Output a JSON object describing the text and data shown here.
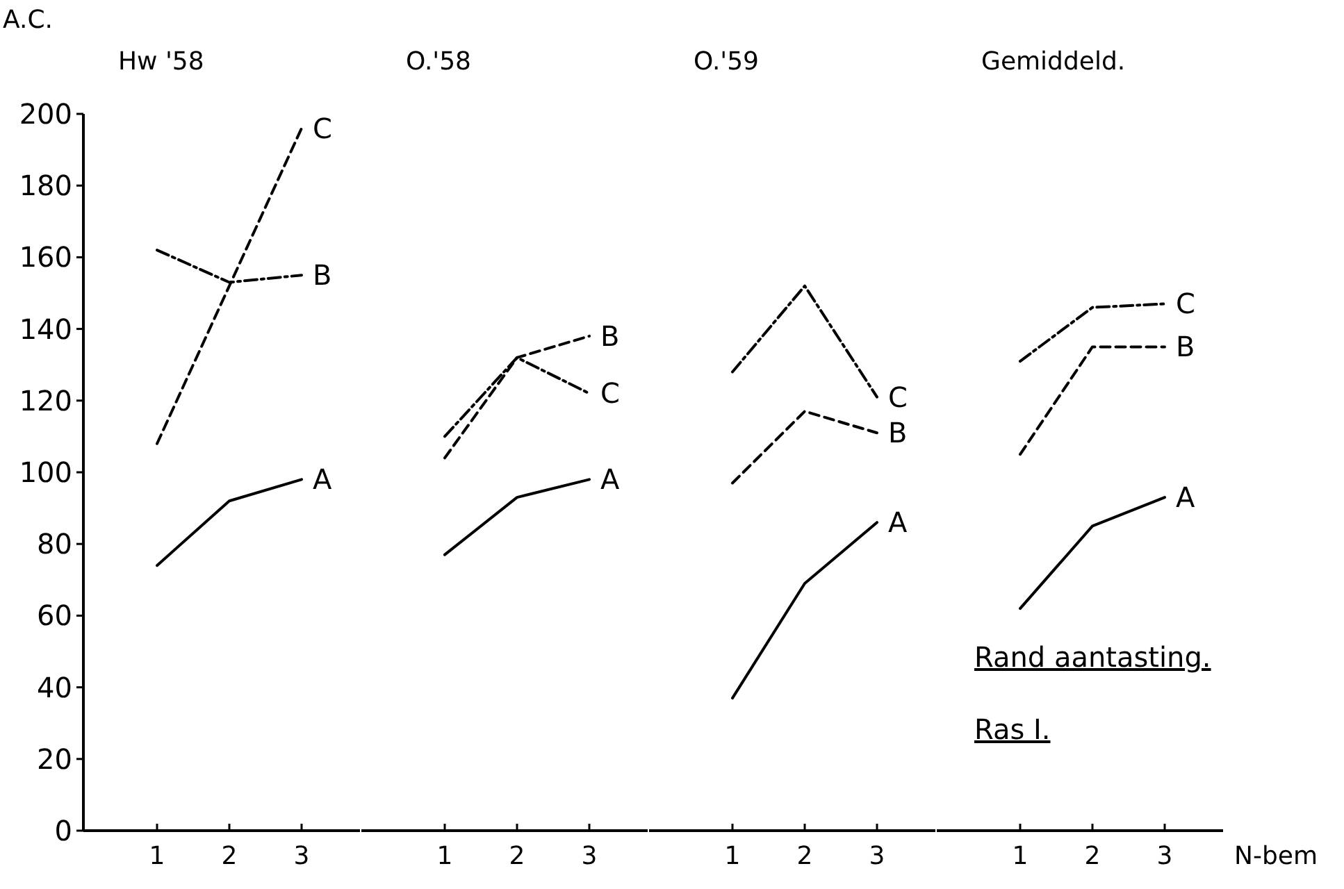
{
  "chart_data": [
    {
      "type": "line",
      "title": "Hw '58",
      "ylabel": "A.C.",
      "categories": [
        "1",
        "2",
        "3"
      ],
      "ylim": [
        0,
        200
      ],
      "yticks": [
        0,
        20,
        40,
        60,
        80,
        100,
        120,
        140,
        160,
        180,
        200
      ],
      "legend": false,
      "series": [
        {
          "name": "A",
          "color": "#000000",
          "line_style": "solid",
          "values": [
            74,
            92,
            98
          ]
        },
        {
          "name": "B",
          "color": "#000000",
          "line_style": "dashdot",
          "values": [
            162,
            153,
            155
          ]
        },
        {
          "name": "C",
          "color": "#000000",
          "line_style": "dashed",
          "values": [
            108,
            152,
            196
          ]
        }
      ]
    },
    {
      "type": "line",
      "title": "O.'58",
      "categories": [
        "1",
        "2",
        "3"
      ],
      "ylim": [
        0,
        200
      ],
      "yticks": [
        0,
        20,
        40,
        60,
        80,
        100,
        120,
        140,
        160,
        180,
        200
      ],
      "tick_labels": "x",
      "legend": false,
      "series": [
        {
          "name": "A",
          "color": "#000000",
          "line_style": "solid",
          "values": [
            77,
            93,
            98
          ]
        },
        {
          "name": "B",
          "color": "#000000",
          "line_style": "dashed",
          "values": [
            104,
            132,
            138
          ]
        },
        {
          "name": "C",
          "color": "#000000",
          "line_style": "dashdot",
          "values": [
            110,
            132,
            122
          ]
        }
      ]
    },
    {
      "type": "line",
      "title": "O.'59",
      "categories": [
        "1",
        "2",
        "3"
      ],
      "ylim": [
        0,
        200
      ],
      "yticks": [
        0,
        20,
        40,
        60,
        80,
        100,
        120,
        140,
        160,
        180,
        200
      ],
      "tick_labels": "x",
      "legend": false,
      "series": [
        {
          "name": "A",
          "color": "#000000",
          "line_style": "solid",
          "values": [
            37,
            69,
            86
          ]
        },
        {
          "name": "B",
          "color": "#000000",
          "line_style": "dashed",
          "values": [
            97,
            117,
            111
          ]
        },
        {
          "name": "C",
          "color": "#000000",
          "line_style": "dashdot",
          "values": [
            128,
            152,
            121
          ]
        }
      ]
    },
    {
      "type": "line",
      "title": "Gemiddeld.",
      "xlabel": "N-bem",
      "categories": [
        "1",
        "2",
        "3"
      ],
      "ylim": [
        0,
        200
      ],
      "yticks": [
        0,
        20,
        40,
        60,
        80,
        100,
        120,
        140,
        160,
        180,
        200
      ],
      "tick_labels": "x",
      "legend": false,
      "annotations": [
        "Rand aantasting.",
        "Ras I."
      ],
      "series": [
        {
          "name": "A",
          "color": "#000000",
          "line_style": "solid",
          "values": [
            62,
            85,
            93
          ]
        },
        {
          "name": "B",
          "color": "#000000",
          "line_style": "dashed",
          "values": [
            105,
            135,
            135
          ]
        },
        {
          "name": "C",
          "color": "#000000",
          "line_style": "dashdot",
          "values": [
            131,
            146,
            147
          ]
        }
      ]
    }
  ]
}
